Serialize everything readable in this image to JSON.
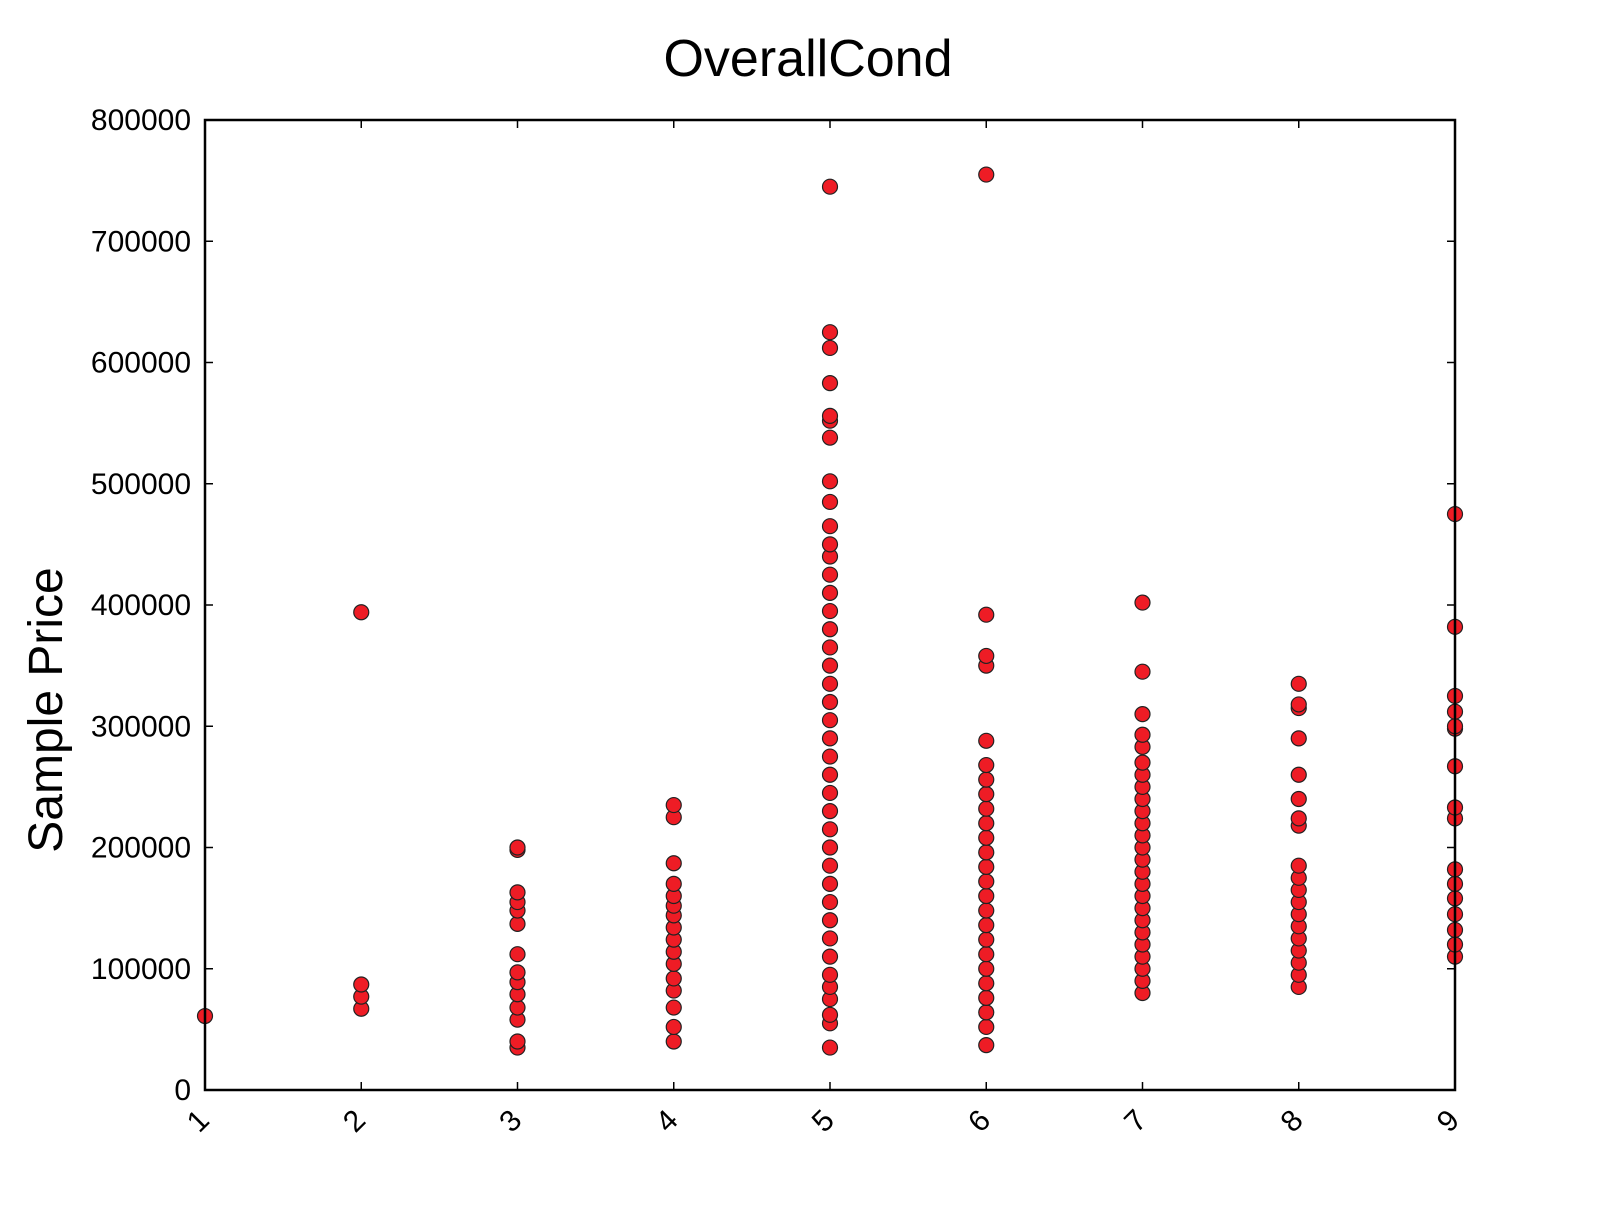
{
  "chart_data": {
    "type": "scatter",
    "title": "OverallCond",
    "xlabel": "",
    "ylabel": "Sample Price",
    "xlim": [
      1,
      9
    ],
    "ylim": [
      0,
      800000
    ],
    "x_ticks": [
      "1",
      "2",
      "3",
      "4",
      "5",
      "6",
      "7",
      "8",
      "9"
    ],
    "y_ticks": [
      "0",
      "100000",
      "200000",
      "300000",
      "400000",
      "500000",
      "600000",
      "700000",
      "800000"
    ],
    "grid": false,
    "legend": "none",
    "marker_color": "#ee1c25",
    "marker_edge_color": "#222222",
    "points": [
      {
        "x": 1,
        "y": 61000
      },
      {
        "x": 2,
        "y": 67000
      },
      {
        "x": 2,
        "y": 77000
      },
      {
        "x": 2,
        "y": 87000
      },
      {
        "x": 2,
        "y": 394000
      },
      {
        "x": 3,
        "y": 35000
      },
      {
        "x": 3,
        "y": 40000
      },
      {
        "x": 3,
        "y": 58000
      },
      {
        "x": 3,
        "y": 68000
      },
      {
        "x": 3,
        "y": 79000
      },
      {
        "x": 3,
        "y": 89000
      },
      {
        "x": 3,
        "y": 97000
      },
      {
        "x": 3,
        "y": 112000
      },
      {
        "x": 3,
        "y": 137000
      },
      {
        "x": 3,
        "y": 148000
      },
      {
        "x": 3,
        "y": 155000
      },
      {
        "x": 3,
        "y": 163000
      },
      {
        "x": 3,
        "y": 198000
      },
      {
        "x": 3,
        "y": 200000
      },
      {
        "x": 4,
        "y": 40000
      },
      {
        "x": 4,
        "y": 52000
      },
      {
        "x": 4,
        "y": 68000
      },
      {
        "x": 4,
        "y": 82000
      },
      {
        "x": 4,
        "y": 92000
      },
      {
        "x": 4,
        "y": 104000
      },
      {
        "x": 4,
        "y": 114000
      },
      {
        "x": 4,
        "y": 124000
      },
      {
        "x": 4,
        "y": 134000
      },
      {
        "x": 4,
        "y": 144000
      },
      {
        "x": 4,
        "y": 152000
      },
      {
        "x": 4,
        "y": 160000
      },
      {
        "x": 4,
        "y": 170000
      },
      {
        "x": 4,
        "y": 187000
      },
      {
        "x": 4,
        "y": 225000
      },
      {
        "x": 4,
        "y": 235000
      },
      {
        "x": 5,
        "y": 35000
      },
      {
        "x": 5,
        "y": 55000
      },
      {
        "x": 5,
        "y": 62000
      },
      {
        "x": 5,
        "y": 75000
      },
      {
        "x": 5,
        "y": 85000
      },
      {
        "x": 5,
        "y": 95000
      },
      {
        "x": 5,
        "y": 110000
      },
      {
        "x": 5,
        "y": 125000
      },
      {
        "x": 5,
        "y": 140000
      },
      {
        "x": 5,
        "y": 155000
      },
      {
        "x": 5,
        "y": 170000
      },
      {
        "x": 5,
        "y": 185000
      },
      {
        "x": 5,
        "y": 200000
      },
      {
        "x": 5,
        "y": 215000
      },
      {
        "x": 5,
        "y": 230000
      },
      {
        "x": 5,
        "y": 245000
      },
      {
        "x": 5,
        "y": 260000
      },
      {
        "x": 5,
        "y": 275000
      },
      {
        "x": 5,
        "y": 290000
      },
      {
        "x": 5,
        "y": 305000
      },
      {
        "x": 5,
        "y": 320000
      },
      {
        "x": 5,
        "y": 335000
      },
      {
        "x": 5,
        "y": 350000
      },
      {
        "x": 5,
        "y": 365000
      },
      {
        "x": 5,
        "y": 380000
      },
      {
        "x": 5,
        "y": 395000
      },
      {
        "x": 5,
        "y": 410000
      },
      {
        "x": 5,
        "y": 425000
      },
      {
        "x": 5,
        "y": 440000
      },
      {
        "x": 5,
        "y": 450000
      },
      {
        "x": 5,
        "y": 465000
      },
      {
        "x": 5,
        "y": 485000
      },
      {
        "x": 5,
        "y": 502000
      },
      {
        "x": 5,
        "y": 538000
      },
      {
        "x": 5,
        "y": 552000
      },
      {
        "x": 5,
        "y": 556000
      },
      {
        "x": 5,
        "y": 583000
      },
      {
        "x": 5,
        "y": 612000
      },
      {
        "x": 5,
        "y": 625000
      },
      {
        "x": 5,
        "y": 745000
      },
      {
        "x": 6,
        "y": 37000
      },
      {
        "x": 6,
        "y": 52000
      },
      {
        "x": 6,
        "y": 64000
      },
      {
        "x": 6,
        "y": 76000
      },
      {
        "x": 6,
        "y": 88000
      },
      {
        "x": 6,
        "y": 100000
      },
      {
        "x": 6,
        "y": 112000
      },
      {
        "x": 6,
        "y": 124000
      },
      {
        "x": 6,
        "y": 136000
      },
      {
        "x": 6,
        "y": 148000
      },
      {
        "x": 6,
        "y": 160000
      },
      {
        "x": 6,
        "y": 172000
      },
      {
        "x": 6,
        "y": 184000
      },
      {
        "x": 6,
        "y": 196000
      },
      {
        "x": 6,
        "y": 208000
      },
      {
        "x": 6,
        "y": 220000
      },
      {
        "x": 6,
        "y": 232000
      },
      {
        "x": 6,
        "y": 244000
      },
      {
        "x": 6,
        "y": 256000
      },
      {
        "x": 6,
        "y": 268000
      },
      {
        "x": 6,
        "y": 288000
      },
      {
        "x": 6,
        "y": 350000
      },
      {
        "x": 6,
        "y": 358000
      },
      {
        "x": 6,
        "y": 392000
      },
      {
        "x": 6,
        "y": 755000
      },
      {
        "x": 7,
        "y": 80000
      },
      {
        "x": 7,
        "y": 90000
      },
      {
        "x": 7,
        "y": 100000
      },
      {
        "x": 7,
        "y": 110000
      },
      {
        "x": 7,
        "y": 120000
      },
      {
        "x": 7,
        "y": 130000
      },
      {
        "x": 7,
        "y": 140000
      },
      {
        "x": 7,
        "y": 150000
      },
      {
        "x": 7,
        "y": 160000
      },
      {
        "x": 7,
        "y": 170000
      },
      {
        "x": 7,
        "y": 180000
      },
      {
        "x": 7,
        "y": 190000
      },
      {
        "x": 7,
        "y": 200000
      },
      {
        "x": 7,
        "y": 210000
      },
      {
        "x": 7,
        "y": 220000
      },
      {
        "x": 7,
        "y": 230000
      },
      {
        "x": 7,
        "y": 240000
      },
      {
        "x": 7,
        "y": 250000
      },
      {
        "x": 7,
        "y": 260000
      },
      {
        "x": 7,
        "y": 270000
      },
      {
        "x": 7,
        "y": 283000
      },
      {
        "x": 7,
        "y": 293000
      },
      {
        "x": 7,
        "y": 310000
      },
      {
        "x": 7,
        "y": 345000
      },
      {
        "x": 7,
        "y": 402000
      },
      {
        "x": 8,
        "y": 85000
      },
      {
        "x": 8,
        "y": 95000
      },
      {
        "x": 8,
        "y": 105000
      },
      {
        "x": 8,
        "y": 115000
      },
      {
        "x": 8,
        "y": 125000
      },
      {
        "x": 8,
        "y": 135000
      },
      {
        "x": 8,
        "y": 145000
      },
      {
        "x": 8,
        "y": 155000
      },
      {
        "x": 8,
        "y": 165000
      },
      {
        "x": 8,
        "y": 175000
      },
      {
        "x": 8,
        "y": 185000
      },
      {
        "x": 8,
        "y": 218000
      },
      {
        "x": 8,
        "y": 224000
      },
      {
        "x": 8,
        "y": 240000
      },
      {
        "x": 8,
        "y": 260000
      },
      {
        "x": 8,
        "y": 290000
      },
      {
        "x": 8,
        "y": 315000
      },
      {
        "x": 8,
        "y": 318000
      },
      {
        "x": 8,
        "y": 335000
      },
      {
        "x": 9,
        "y": 110000
      },
      {
        "x": 9,
        "y": 120000
      },
      {
        "x": 9,
        "y": 132000
      },
      {
        "x": 9,
        "y": 145000
      },
      {
        "x": 9,
        "y": 158000
      },
      {
        "x": 9,
        "y": 170000
      },
      {
        "x": 9,
        "y": 182000
      },
      {
        "x": 9,
        "y": 224000
      },
      {
        "x": 9,
        "y": 233000
      },
      {
        "x": 9,
        "y": 267000
      },
      {
        "x": 9,
        "y": 298000
      },
      {
        "x": 9,
        "y": 300000
      },
      {
        "x": 9,
        "y": 312000
      },
      {
        "x": 9,
        "y": 325000
      },
      {
        "x": 9,
        "y": 382000
      },
      {
        "x": 9,
        "y": 475000
      }
    ]
  }
}
